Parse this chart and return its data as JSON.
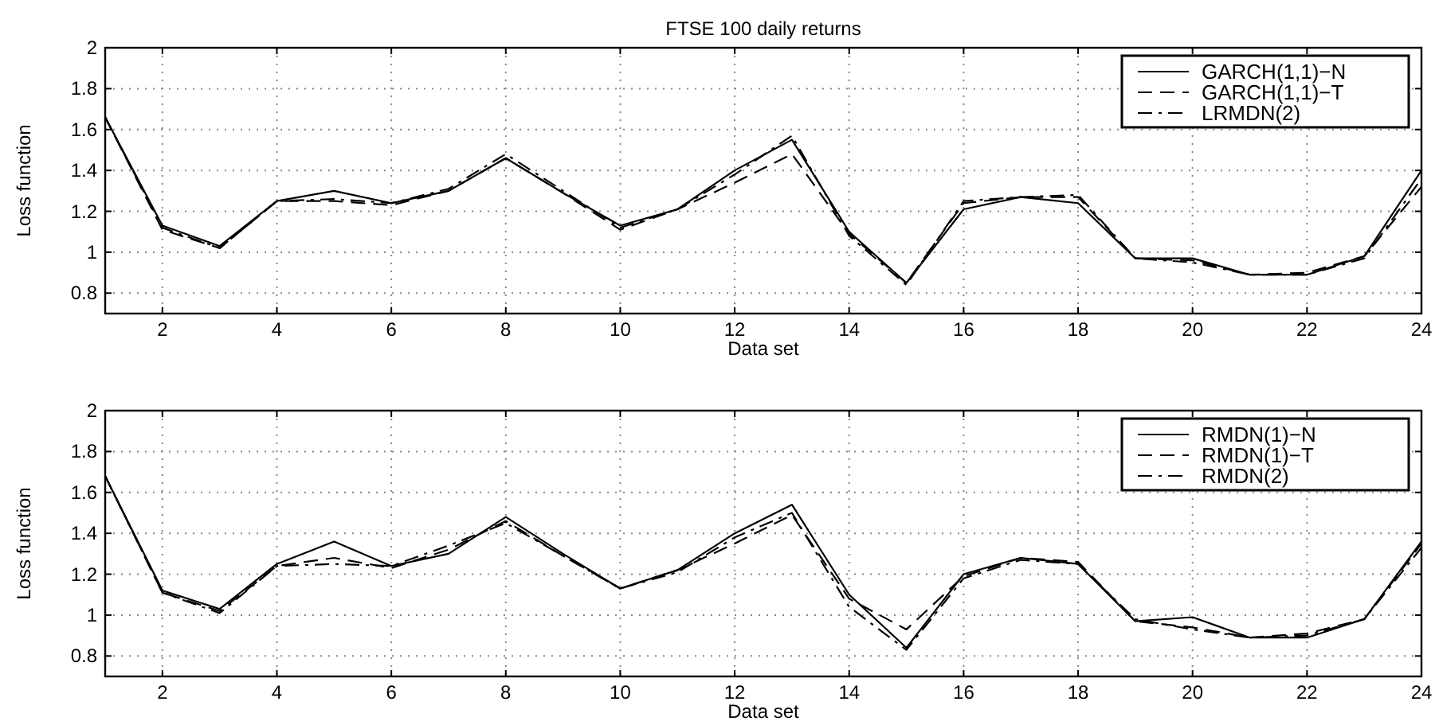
{
  "chart_data": [
    {
      "type": "line",
      "title": "FTSE 100 daily returns",
      "xlabel": "Data set",
      "ylabel": "Loss function",
      "x": [
        1,
        2,
        3,
        4,
        5,
        6,
        7,
        8,
        9,
        10,
        11,
        12,
        13,
        14,
        15,
        16,
        17,
        18,
        19,
        20,
        21,
        22,
        23,
        24
      ],
      "xlim": [
        1,
        24
      ],
      "xticks": [
        2,
        4,
        6,
        8,
        10,
        12,
        14,
        16,
        18,
        20,
        22,
        24
      ],
      "ylim": [
        0.7,
        2
      ],
      "yticks": [
        0.8,
        1,
        1.2,
        1.4,
        1.6,
        1.8,
        2
      ],
      "grid": true,
      "legend": "top right",
      "series": [
        {
          "name": "GARCH(1,1)−N",
          "color": "#000000",
          "line_style": "solid",
          "values": [
            1.66,
            1.13,
            1.03,
            1.25,
            1.3,
            1.24,
            1.3,
            1.46,
            1.29,
            1.13,
            1.21,
            1.4,
            1.55,
            1.1,
            0.85,
            1.21,
            1.27,
            1.24,
            0.97,
            0.97,
            0.89,
            0.89,
            0.98,
            1.4
          ]
        },
        {
          "name": "GARCH(1,1)−T",
          "color": "#000000",
          "line_style": "dashed",
          "values": [
            1.66,
            1.11,
            1.02,
            1.25,
            1.25,
            1.23,
            1.3,
            1.46,
            1.29,
            1.11,
            1.21,
            1.34,
            1.48,
            1.09,
            0.85,
            1.24,
            1.27,
            1.27,
            0.97,
            0.96,
            0.89,
            0.9,
            0.98,
            1.32
          ]
        },
        {
          "name": "LRMDN(2)",
          "color": "#000000",
          "line_style": "dashdot",
          "values": [
            1.66,
            1.12,
            1.02,
            1.25,
            1.26,
            1.24,
            1.31,
            1.48,
            1.3,
            1.12,
            1.21,
            1.38,
            1.57,
            1.08,
            0.84,
            1.25,
            1.27,
            1.28,
            0.97,
            0.95,
            0.89,
            0.89,
            0.97,
            1.36
          ]
        }
      ]
    },
    {
      "type": "line",
      "xlabel": "Data set",
      "ylabel": "Loss function",
      "x": [
        1,
        2,
        3,
        4,
        5,
        6,
        7,
        8,
        9,
        10,
        11,
        12,
        13,
        14,
        15,
        16,
        17,
        18,
        19,
        20,
        21,
        22,
        23,
        24
      ],
      "xlim": [
        1,
        24
      ],
      "xticks": [
        2,
        4,
        6,
        8,
        10,
        12,
        14,
        16,
        18,
        20,
        22,
        24
      ],
      "ylim": [
        0.7,
        2
      ],
      "yticks": [
        0.8,
        1,
        1.2,
        1.4,
        1.6,
        1.8,
        2
      ],
      "grid": true,
      "legend": "top right",
      "series": [
        {
          "name": "RMDN(1)−N",
          "color": "#000000",
          "line_style": "solid",
          "values": [
            1.68,
            1.12,
            1.03,
            1.25,
            1.36,
            1.24,
            1.3,
            1.48,
            1.3,
            1.13,
            1.22,
            1.4,
            1.54,
            1.1,
            0.84,
            1.2,
            1.28,
            1.25,
            0.97,
            0.99,
            0.89,
            0.89,
            0.98,
            1.36
          ]
        },
        {
          "name": "RMDN(1)−T",
          "color": "#000000",
          "line_style": "dashed",
          "values": [
            1.68,
            1.11,
            1.02,
            1.24,
            1.28,
            1.23,
            1.32,
            1.46,
            1.29,
            1.13,
            1.22,
            1.35,
            1.49,
            1.08,
            0.93,
            1.19,
            1.28,
            1.26,
            0.97,
            0.94,
            0.89,
            0.91,
            0.98,
            1.35
          ]
        },
        {
          "name": "RMDN(2)",
          "color": "#000000",
          "line_style": "dashdot",
          "values": [
            1.68,
            1.11,
            1.01,
            1.24,
            1.25,
            1.24,
            1.34,
            1.45,
            1.29,
            1.13,
            1.21,
            1.38,
            1.5,
            1.04,
            0.83,
            1.18,
            1.27,
            1.25,
            0.98,
            0.93,
            0.89,
            0.9,
            0.98,
            1.33
          ]
        }
      ]
    }
  ]
}
